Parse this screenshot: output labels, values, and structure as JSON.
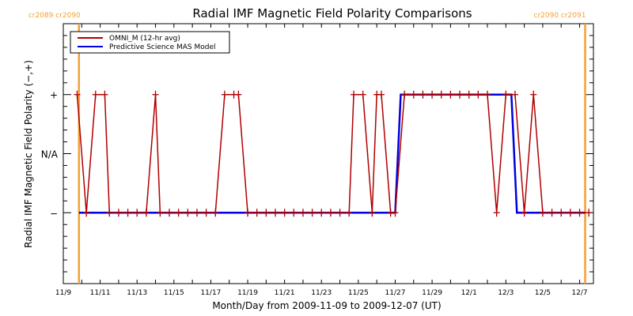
{
  "chart_data": {
    "type": "line",
    "title": "Radial IMF Magnetic Field Polarity Comparisons",
    "xlabel": "Month/Day from 2009-11-09 to 2009-12-07 (UT)",
    "ylabel": "Radial IMF Magnetic Field Polarity (−,+)",
    "x_unit": "days since 2009-11-09 00:00 UT",
    "xlim": [
      0,
      28.75
    ],
    "ylim": [
      -2.2,
      2.2
    ],
    "x_ticks": [
      {
        "value": 0,
        "label": "11/9"
      },
      {
        "value": 2,
        "label": "11/11"
      },
      {
        "value": 4,
        "label": "11/13"
      },
      {
        "value": 6,
        "label": "11/15"
      },
      {
        "value": 8,
        "label": "11/17"
      },
      {
        "value": 10,
        "label": "11/19"
      },
      {
        "value": 12,
        "label": "11/21"
      },
      {
        "value": 14,
        "label": "11/23"
      },
      {
        "value": 16,
        "label": "11/25"
      },
      {
        "value": 18,
        "label": "11/27"
      },
      {
        "value": 20,
        "label": "11/29"
      },
      {
        "value": 22,
        "label": "12/1"
      },
      {
        "value": 24,
        "label": "12/3"
      },
      {
        "value": 26,
        "label": "12/5"
      },
      {
        "value": 28,
        "label": "12/7"
      }
    ],
    "y_ticks": [
      {
        "value": 1,
        "label": "+"
      },
      {
        "value": 0,
        "label": "N/A"
      },
      {
        "value": -1,
        "label": "−"
      }
    ],
    "legend": {
      "placement": "top-left",
      "entries": [
        {
          "name": "OMNI_M (12-hr avg)",
          "color": "#b00000"
        },
        {
          "name": "Predictive Science MAS Model",
          "color": "#0000e0"
        }
      ]
    },
    "carrington_markers": [
      {
        "x": 0.85,
        "label_left": "cr2089",
        "label_right": "cr2090",
        "position": "top-left"
      },
      {
        "x": 28.3,
        "label_left": "cr2090",
        "label_right": "cr2091",
        "position": "top-right"
      }
    ],
    "series": [
      {
        "name": "OMNI_M (12-hr avg)",
        "color": "#b00000",
        "markers": "plus",
        "x": [
          0.75,
          1.25,
          1.75,
          2.25,
          2.5,
          3.0,
          3.5,
          4.0,
          4.5,
          5.0,
          5.25,
          5.75,
          6.25,
          6.75,
          7.25,
          7.75,
          8.25,
          8.75,
          9.25,
          9.5,
          10.0,
          10.5,
          11.0,
          11.5,
          12.0,
          12.5,
          13.0,
          13.5,
          14.0,
          14.5,
          15.0,
          15.5,
          15.75,
          16.25,
          16.75,
          17.0,
          17.25,
          17.75,
          18.0,
          18.5,
          19.0,
          19.5,
          20.0,
          20.5,
          21.0,
          21.5,
          22.0,
          22.5,
          23.0,
          23.5,
          24.0,
          24.5,
          25.0,
          25.5,
          26.0,
          26.5,
          27.0,
          27.5,
          28.0,
          28.5
        ],
        "y": [
          1,
          -1,
          1,
          1,
          -1,
          -1,
          -1,
          -1,
          -1,
          1,
          -1,
          -1,
          -1,
          -1,
          -1,
          -1,
          -1,
          1,
          1,
          1,
          -1,
          -1,
          -1,
          -1,
          -1,
          -1,
          -1,
          -1,
          -1,
          -1,
          -1,
          -1,
          1,
          1,
          -1,
          1,
          1,
          -1,
          -1,
          1,
          1,
          1,
          1,
          1,
          1,
          1,
          1,
          1,
          1,
          -1,
          1,
          1,
          -1,
          1,
          -1,
          -1,
          -1,
          -1,
          -1,
          -1
        ]
      },
      {
        "name": "Predictive Science MAS Model",
        "color": "#0000e0",
        "x": [
          0.85,
          18.0,
          18.3,
          24.3,
          24.6,
          28.3
        ],
        "y": [
          -1,
          -1,
          1,
          1,
          -1,
          -1
        ]
      }
    ]
  }
}
